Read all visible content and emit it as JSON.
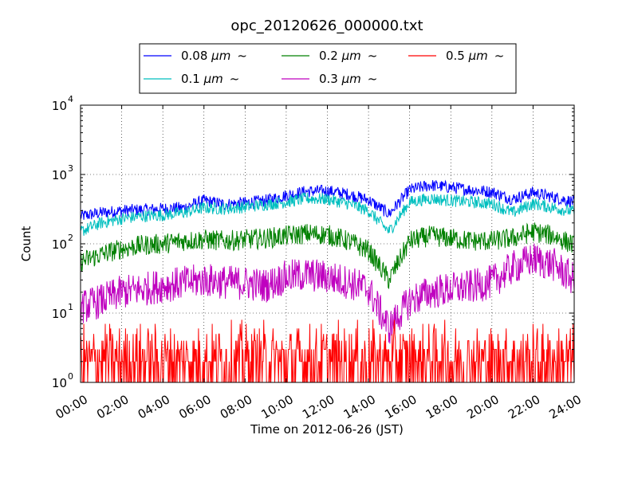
{
  "chart_data": {
    "type": "line",
    "title": "opc_20120626_000000.txt",
    "xlabel": "Time on 2012-06-26 (JST)",
    "ylabel": "Count",
    "yscale": "log",
    "ylim": [
      1,
      10000
    ],
    "xlim": [
      "00:00",
      "24:00"
    ],
    "x_ticks": [
      "00:00",
      "02:00",
      "04:00",
      "06:00",
      "08:00",
      "10:00",
      "12:00",
      "14:00",
      "16:00",
      "18:00",
      "20:00",
      "22:00",
      "24:00"
    ],
    "y_ticks": [
      {
        "base": "10",
        "exp": "0",
        "value": 1
      },
      {
        "base": "10",
        "exp": "1",
        "value": 10
      },
      {
        "base": "10",
        "exp": "2",
        "value": 100
      },
      {
        "base": "10",
        "exp": "3",
        "value": 1000
      },
      {
        "base": "10",
        "exp": "4",
        "value": 10000
      }
    ],
    "grid": true,
    "legend_position": "top-center",
    "legend_unit": "μm",
    "legend_suffix": "~",
    "hours": [
      0,
      1,
      2,
      3,
      4,
      5,
      6,
      7,
      8,
      9,
      10,
      11,
      12,
      13,
      14,
      15,
      16,
      17,
      18,
      19,
      20,
      21,
      22,
      23,
      24
    ],
    "series": [
      {
        "name": "0.08",
        "color": "#0000ff",
        "noise": 0.18,
        "values": [
          250,
          280,
          300,
          310,
          320,
          330,
          420,
          370,
          390,
          420,
          500,
          570,
          580,
          520,
          430,
          270,
          600,
          700,
          650,
          600,
          560,
          440,
          550,
          470,
          400
        ]
      },
      {
        "name": "0.1",
        "color": "#00bfbf",
        "noise": 0.18,
        "values": [
          150,
          200,
          230,
          250,
          260,
          280,
          330,
          320,
          340,
          370,
          400,
          450,
          440,
          380,
          300,
          150,
          400,
          450,
          420,
          400,
          380,
          280,
          380,
          330,
          290
        ]
      },
      {
        "name": "0.2",
        "color": "#008000",
        "noise": 0.3,
        "values": [
          55,
          70,
          85,
          95,
          100,
          110,
          115,
          110,
          115,
          120,
          130,
          140,
          135,
          110,
          80,
          30,
          110,
          130,
          120,
          110,
          110,
          120,
          150,
          130,
          95
        ]
      },
      {
        "name": "0.3",
        "color": "#bf00bf",
        "noise": 0.5,
        "values": [
          12,
          15,
          20,
          22,
          25,
          27,
          30,
          28,
          27,
          25,
          33,
          36,
          33,
          28,
          22,
          6,
          15,
          20,
          22,
          24,
          28,
          45,
          60,
          50,
          30
        ]
      },
      {
        "name": "0.5",
        "color": "#ff0000",
        "noise": 0,
        "values": [
          2,
          2,
          2,
          2,
          2,
          2,
          2,
          2,
          2,
          2,
          2,
          2,
          2,
          2,
          2,
          2,
          2,
          2,
          2,
          2,
          2,
          2,
          2,
          2,
          2
        ],
        "discrete": [
          1,
          2,
          3,
          4,
          5,
          6,
          7,
          8,
          9
        ]
      }
    ]
  }
}
